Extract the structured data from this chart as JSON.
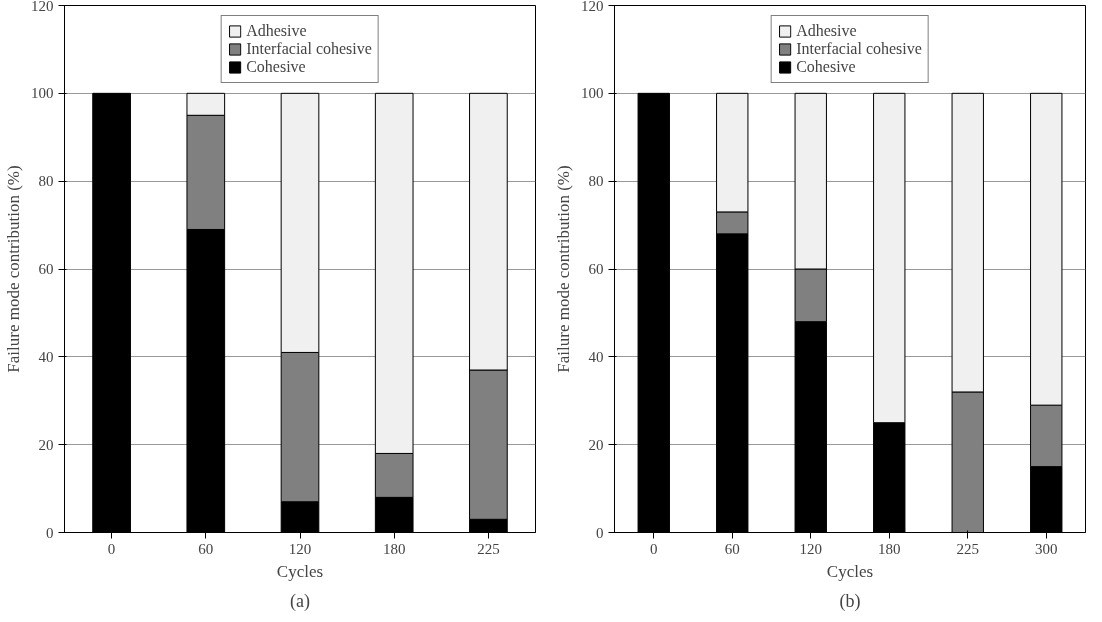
{
  "chart_data": [
    {
      "type": "bar",
      "stacked": true,
      "categories": [
        "0",
        "60",
        "120",
        "180",
        "225"
      ],
      "xlabel": "Cycles",
      "ylabel": "Failure mode contribution (%)",
      "ylim": [
        0,
        120
      ],
      "yticks": [
        0,
        20,
        40,
        60,
        80,
        100,
        120
      ],
      "grid": "y",
      "legend": "top",
      "annotations": [
        "(a)"
      ],
      "series": [
        {
          "name": "Cohesive",
          "color": "#000000",
          "values": [
            100,
            69,
            7,
            8,
            3
          ]
        },
        {
          "name": "Interfacial cohesive",
          "color": "#808080",
          "values": [
            0,
            26,
            34,
            10,
            34
          ]
        },
        {
          "name": "Adhesive",
          "color": "#f0f0f0",
          "values": [
            0,
            5,
            59,
            82,
            63
          ]
        }
      ]
    },
    {
      "type": "bar",
      "stacked": true,
      "categories": [
        "0",
        "60",
        "120",
        "180",
        "225",
        "300"
      ],
      "xlabel": "Cycles",
      "ylabel": "Failure mode contribution (%)",
      "ylim": [
        0,
        120
      ],
      "yticks": [
        0,
        20,
        40,
        60,
        80,
        100,
        120
      ],
      "grid": "y",
      "legend": "top",
      "annotations": [
        "(b)"
      ],
      "series": [
        {
          "name": "Cohesive",
          "color": "#000000",
          "values": [
            100,
            68,
            48,
            25,
            0,
            15
          ]
        },
        {
          "name": "Interfacial cohesive",
          "color": "#808080",
          "values": [
            0,
            5,
            12,
            0,
            32,
            14
          ]
        },
        {
          "name": "Adhesive",
          "color": "#f0f0f0",
          "values": [
            0,
            27,
            40,
            75,
            68,
            71
          ]
        }
      ]
    }
  ]
}
